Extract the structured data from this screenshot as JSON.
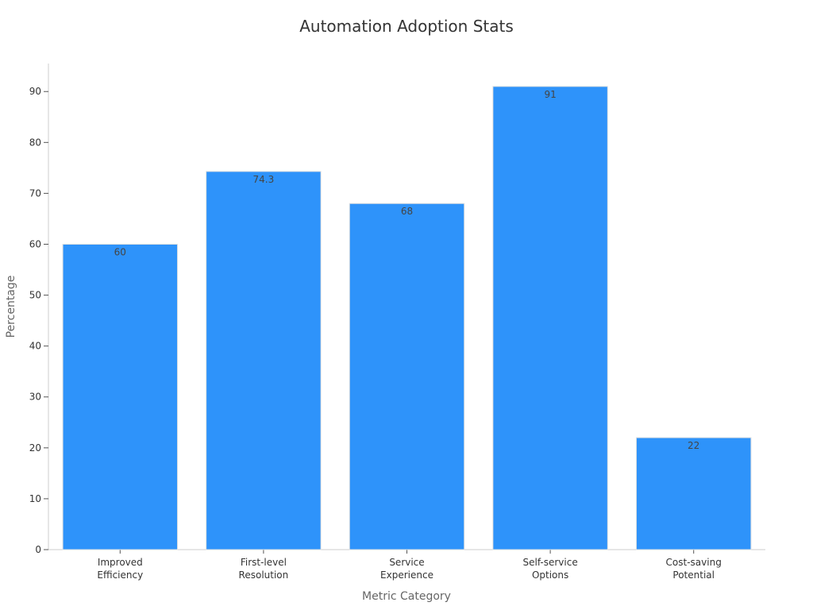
{
  "chart_data": {
    "type": "bar",
    "title": "Automation Adoption Stats",
    "xlabel": "Metric Category",
    "ylabel": "Percentage",
    "categories": [
      [
        "Improved",
        "Efficiency"
      ],
      [
        "First-level",
        "Resolution"
      ],
      [
        "Service",
        "Experience"
      ],
      [
        "Self-service",
        "Options"
      ],
      [
        "Cost-saving",
        "Potential"
      ]
    ],
    "values": [
      60,
      74.3,
      68,
      91,
      22
    ],
    "value_labels": [
      "60",
      "74.3",
      "68",
      "91",
      "22"
    ],
    "ylim": [
      0,
      95.5
    ],
    "yticks": [
      0,
      10,
      20,
      30,
      40,
      50,
      60,
      70,
      80,
      90
    ],
    "grid": false,
    "bar_color": "#2e93fa",
    "bar_edge_color": "#e0e0e0",
    "axis_color": "#cccccc"
  }
}
